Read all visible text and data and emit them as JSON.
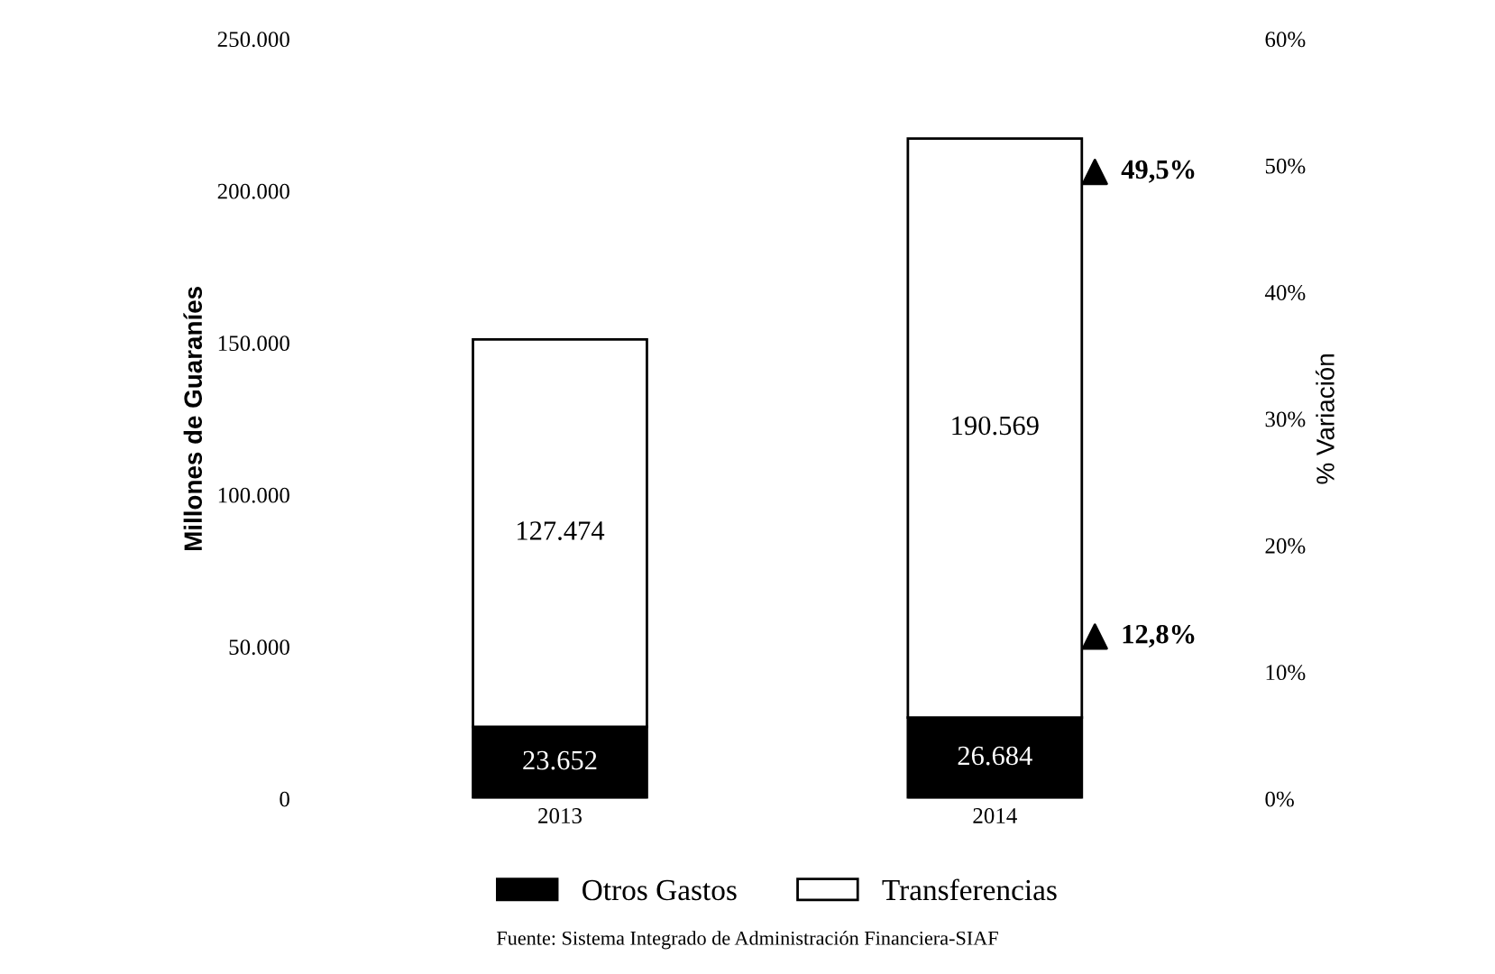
{
  "chart_data": {
    "type": "bar",
    "stacked": true,
    "categories": [
      "2013",
      "2014"
    ],
    "ylabel": "Millones de Guaraníes",
    "y2label": "% Variación",
    "ylim": [
      0,
      250000
    ],
    "yticks": [
      {
        "value": 0,
        "label": "0"
      },
      {
        "value": 50000,
        "label": "50.000"
      },
      {
        "value": 100000,
        "label": "100.000"
      },
      {
        "value": 150000,
        "label": "150.000"
      },
      {
        "value": 200000,
        "label": "200.000"
      },
      {
        "value": 250000,
        "label": "250.000"
      }
    ],
    "y2lim": [
      0,
      60
    ],
    "y2ticks": [
      {
        "value": 0,
        "label": "0%"
      },
      {
        "value": 10,
        "label": "10%"
      },
      {
        "value": 20,
        "label": "20%"
      },
      {
        "value": 30,
        "label": "30%"
      },
      {
        "value": 40,
        "label": "40%"
      },
      {
        "value": 50,
        "label": "50%"
      },
      {
        "value": 60,
        "label": "60%"
      }
    ],
    "series": [
      {
        "name": "Otros Gastos",
        "color": "#000000",
        "values": [
          23652,
          26684
        ],
        "value_labels": [
          "23.652",
          "26.684"
        ]
      },
      {
        "name": "Transferencias",
        "color": "#ffffff",
        "values": [
          127474,
          190569
        ],
        "value_labels": [
          "127.474",
          "190.569"
        ]
      },
      {
        "type": "scatter",
        "axis": "y2",
        "marker": "triangle",
        "color": "#000000",
        "values": [
          null,
          49.5
        ],
        "value_labels": [
          null,
          "49,5%"
        ]
      },
      {
        "type": "scatter",
        "axis": "y2",
        "marker": "triangle",
        "color": "#000000",
        "values": [
          null,
          12.8
        ],
        "value_labels": [
          null,
          "12,8%"
        ]
      }
    ],
    "legend": "bottom",
    "grid": false,
    "annotations": [
      "Fuente: Sistema Integrado de Administración Financiera-SIAF"
    ]
  }
}
